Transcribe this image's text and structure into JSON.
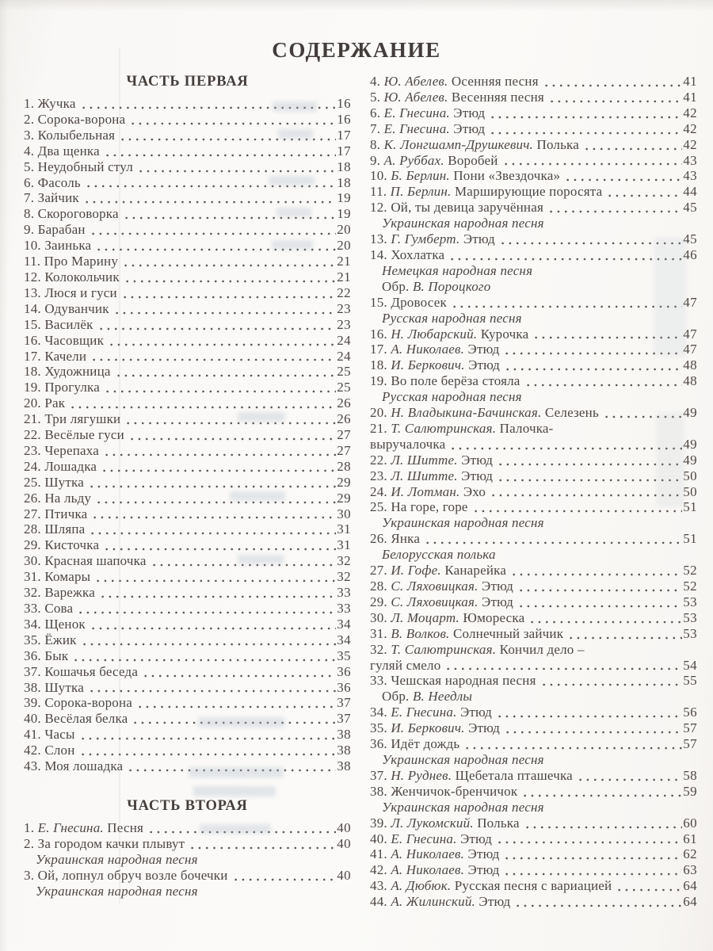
{
  "page_title": "СОДЕРЖАНИЕ",
  "colors": {
    "text": "#4e4744",
    "paper": "#fbfaf8"
  },
  "columns": {
    "left": {
      "sections": [
        {
          "heading": "ЧАСТЬ ПЕРВАЯ",
          "entries": [
            {
              "num": "1.",
              "title": "Жучка",
              "page": "16"
            },
            {
              "num": "2.",
              "title": "Сорока-ворона",
              "page": "16"
            },
            {
              "num": "3.",
              "title": "Колыбельная",
              "page": "17"
            },
            {
              "num": "4.",
              "title": "Два щенка",
              "page": "17"
            },
            {
              "num": "5.",
              "title": "Неудобный стул",
              "page": "18"
            },
            {
              "num": "6.",
              "title": "Фасоль",
              "page": "18"
            },
            {
              "num": "7.",
              "title": "Зайчик",
              "page": "19"
            },
            {
              "num": "8.",
              "title": "Скороговорка",
              "page": "19"
            },
            {
              "num": "9.",
              "title": "Барабан",
              "page": "20"
            },
            {
              "num": "10.",
              "title": "Заинька",
              "page": "20"
            },
            {
              "num": "11.",
              "title": "Про Марину",
              "page": "21"
            },
            {
              "num": "12.",
              "title": "Колокольчик",
              "page": "21"
            },
            {
              "num": "13.",
              "title": "Люся и гуси",
              "page": "22"
            },
            {
              "num": "14.",
              "title": "Одуванчик",
              "page": "23"
            },
            {
              "num": "15.",
              "title": "Василёк",
              "page": "23"
            },
            {
              "num": "16.",
              "title": "Часовщик",
              "page": "24"
            },
            {
              "num": "17.",
              "title": "Качели",
              "page": "24"
            },
            {
              "num": "18.",
              "title": "Художница",
              "page": "25"
            },
            {
              "num": "19.",
              "title": "Прогулка",
              "page": "25"
            },
            {
              "num": "20.",
              "title": "Рак",
              "page": "26"
            },
            {
              "num": "21.",
              "title": "Три лягушки",
              "page": "26"
            },
            {
              "num": "22.",
              "title": "Весёлые гуси",
              "page": "27"
            },
            {
              "num": "23.",
              "title": "Черепаха",
              "page": "27"
            },
            {
              "num": "24.",
              "title": "Лошадка",
              "page": "28"
            },
            {
              "num": "25.",
              "title": "Шутка",
              "page": "29"
            },
            {
              "num": "26.",
              "title": "На льду",
              "page": "29"
            },
            {
              "num": "27.",
              "title": "Птичка",
              "page": "30"
            },
            {
              "num": "28.",
              "title": "Шляпа",
              "page": "31"
            },
            {
              "num": "29.",
              "title": "Кисточка",
              "page": "31"
            },
            {
              "num": "30.",
              "title": "Красная шапочка",
              "page": "32"
            },
            {
              "num": "31.",
              "title": "Комары",
              "page": "32"
            },
            {
              "num": "32.",
              "title": "Варежка",
              "page": "33"
            },
            {
              "num": "33.",
              "title": "Сова",
              "page": "33"
            },
            {
              "num": "34.",
              "title": "Щенок",
              "page": "34"
            },
            {
              "num": "35.",
              "title": "Ёжик",
              "page": "34"
            },
            {
              "num": "36.",
              "title": "Бык",
              "page": "35"
            },
            {
              "num": "37.",
              "title": "Кошачья беседа",
              "page": "36"
            },
            {
              "num": "38.",
              "title": "Шутка",
              "page": "36"
            },
            {
              "num": "39.",
              "title": "Сорока-ворона",
              "page": "37"
            },
            {
              "num": "40.",
              "title": "Весёлая белка",
              "page": "37"
            },
            {
              "num": "41.",
              "title": "Часы",
              "page": "38"
            },
            {
              "num": "42.",
              "title": "Слон",
              "page": "38"
            },
            {
              "num": "43.",
              "title": "Моя лошадка",
              "page": "38"
            }
          ]
        },
        {
          "heading": "ЧАСТЬ ВТОРАЯ",
          "entries": [
            {
              "num": "1.",
              "author": "Е. Гнесина.",
              "title": "Песня",
              "page": "40"
            },
            {
              "num": "2.",
              "title": "За городом качки плывут",
              "page": "40",
              "notes": [
                {
                  "italic": "Украинская народная песня"
                }
              ]
            },
            {
              "num": "3.",
              "title": "Ой, лопнул обруч возле бочечки",
              "page": "40",
              "notes": [
                {
                  "italic": "Украинская народная песня"
                }
              ]
            }
          ]
        }
      ]
    },
    "right": {
      "sections": [
        {
          "heading": null,
          "entries": [
            {
              "num": "4.",
              "author": "Ю. Абелев.",
              "title": "Осенняя песня",
              "page": "41"
            },
            {
              "num": "5.",
              "author": "Ю. Абелев.",
              "title": "Весенняя песня",
              "page": "41"
            },
            {
              "num": "6.",
              "author": "Е. Гнесина.",
              "title": "Этюд",
              "page": "42"
            },
            {
              "num": "7.",
              "author": "Е. Гнесина.",
              "title": "Этюд",
              "page": "42"
            },
            {
              "num": "8.",
              "author": "К. Лонгшамп-Друшкевич.",
              "title": "Полька",
              "page": "42"
            },
            {
              "num": "9.",
              "author": "А. Руббах.",
              "title": "Воробей",
              "page": "43"
            },
            {
              "num": "10.",
              "author": "Б. Берлин.",
              "title": "Пони «Звездочка»",
              "page": "43"
            },
            {
              "num": "11.",
              "author": "П. Берлин.",
              "title": "Марширующие поросята",
              "page": "44"
            },
            {
              "num": "12.",
              "title": "Ой, ты девица заручённая",
              "page": "45",
              "notes": [
                {
                  "italic": "Украинская народная песня"
                }
              ]
            },
            {
              "num": "13.",
              "author": "Г. Гумберт.",
              "title": "Этюд",
              "page": "45"
            },
            {
              "num": "14.",
              "title": "Хохлатка",
              "page": "46",
              "notes": [
                {
                  "italic": "Немецкая народная песня"
                },
                {
                  "pre": "Обр.",
                  "italic": "В. Пороцкого"
                }
              ]
            },
            {
              "num": "15.",
              "title": "Дровосек",
              "page": "47",
              "notes": [
                {
                  "italic": "Русская народная песня"
                }
              ]
            },
            {
              "num": "16.",
              "author": "Н. Любарский.",
              "title": "Курочка",
              "page": "47"
            },
            {
              "num": "17.",
              "author": "А. Николаев.",
              "title": "Этюд",
              "page": "47"
            },
            {
              "num": "18.",
              "author": "И. Беркович.",
              "title": "Этюд",
              "page": "48"
            },
            {
              "num": "19.",
              "title": "Во поле берёза стояла",
              "page": "48",
              "notes": [
                {
                  "italic": "Русская народная песня"
                }
              ]
            },
            {
              "num": "20.",
              "author": "Н. Владыкина-Бачинская.",
              "title": "Селезень",
              "page": "49"
            },
            {
              "num": "21.",
              "author": "Т. Салютринская.",
              "title": "Палочка-",
              "cont": "выручалочка",
              "page": "49"
            },
            {
              "num": "22.",
              "author": "Л. Шитте.",
              "title": "Этюд",
              "page": "49"
            },
            {
              "num": "23.",
              "author": "Л. Шитте.",
              "title": "Этюд",
              "page": "50"
            },
            {
              "num": "24.",
              "author": "И. Лотман.",
              "title": "Эхо",
              "page": "50"
            },
            {
              "num": "25.",
              "title": "На горе, горе",
              "page": "51",
              "notes": [
                {
                  "italic": "Украинская народная песня"
                }
              ]
            },
            {
              "num": "26.",
              "title": "Янка",
              "page": "51",
              "notes": [
                {
                  "italic": "Белорусская полька"
                }
              ]
            },
            {
              "num": "27.",
              "author": "И. Гофе.",
              "title": "Канарейка",
              "page": "52"
            },
            {
              "num": "28.",
              "author": "С. Ляховицкая.",
              "title": "Этюд",
              "page": "52"
            },
            {
              "num": "29.",
              "author": "С. Ляховицкая.",
              "title": "Этюд",
              "page": "53"
            },
            {
              "num": "30.",
              "author": "Л. Моцарт.",
              "title": "Юмореска",
              "page": "53"
            },
            {
              "num": "31.",
              "author": "В. Волков.",
              "title": "Солнечный зайчик",
              "page": "53"
            },
            {
              "num": "32.",
              "author": "Т. Салютринская.",
              "title": "Кончил дело –",
              "cont": "гуляй смело",
              "page": "54"
            },
            {
              "num": "33.",
              "title": "Чешская народная песня",
              "page": "55",
              "notes": [
                {
                  "pre": "Обр.",
                  "italic": "В. Неедлы"
                }
              ]
            },
            {
              "num": "34.",
              "author": "Е. Гнесина.",
              "title": "Этюд",
              "page": "56"
            },
            {
              "num": "35.",
              "author": "И. Беркович.",
              "title": "Этюд",
              "page": "57"
            },
            {
              "num": "36.",
              "title": "Идёт дождь",
              "page": "57",
              "notes": [
                {
                  "italic": "Украинская народная песня"
                }
              ]
            },
            {
              "num": "37.",
              "author": "Н. Руднев.",
              "title": "Щебетала пташечка",
              "page": "58"
            },
            {
              "num": "38.",
              "title": "Женчичок-бренчичок",
              "page": "59",
              "notes": [
                {
                  "italic": "Украинская народная песня"
                }
              ]
            },
            {
              "num": "39.",
              "author": "Л. Лукомский.",
              "title": "Полька",
              "page": "60"
            },
            {
              "num": "40.",
              "author": "Е. Гнесина.",
              "title": "Этюд",
              "page": "61"
            },
            {
              "num": "41.",
              "author": "А. Николаев.",
              "title": "Этюд",
              "page": "62"
            },
            {
              "num": "42.",
              "author": "А. Николаев.",
              "title": "Этюд",
              "page": "63"
            },
            {
              "num": "43.",
              "author": "А. Дюбюк.",
              "title": "Русская песня с вариацией",
              "page": "64"
            },
            {
              "num": "44.",
              "author": "А. Жилинский.",
              "title": "Этюд",
              "page": "64"
            }
          ]
        }
      ]
    }
  }
}
